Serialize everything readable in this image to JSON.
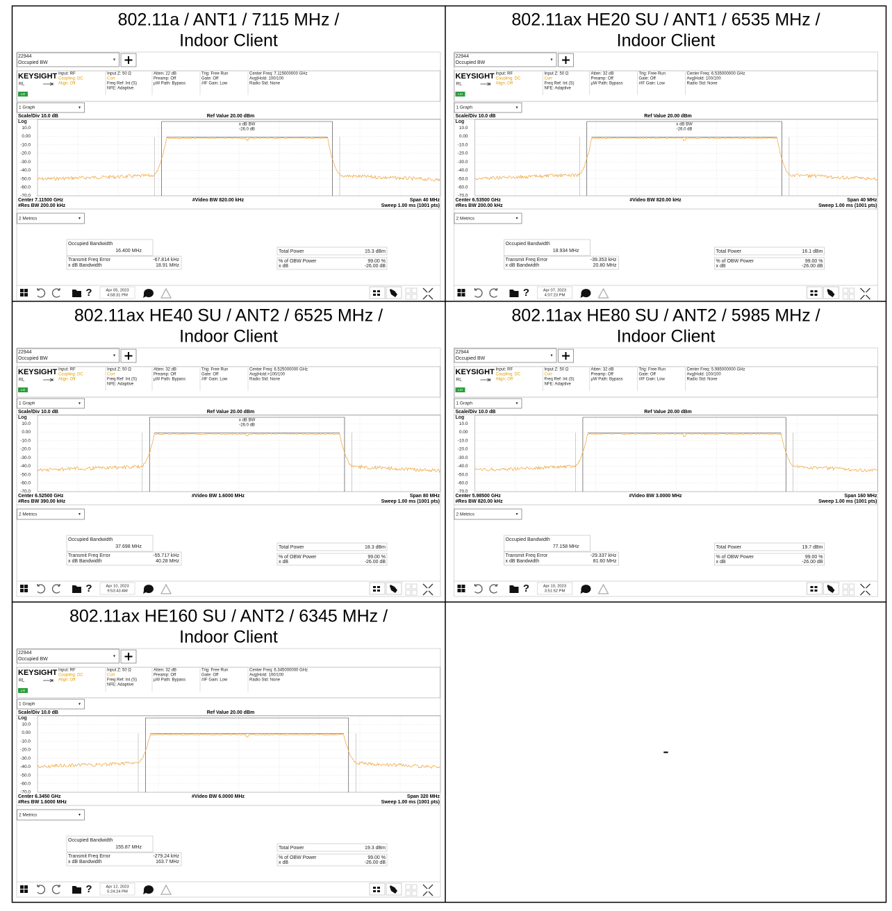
{
  "cells": [
    {
      "title": [
        "802.11a / ANT1 / 7115 MHz /",
        "Indoor Client"
      ],
      "screen": {
        "id": "22944",
        "mode": "Occupied BW",
        "brand": "KEYSIGHT",
        "rl": "RL",
        "lxi": "LXI",
        "header": [
          [
            "Input: RF",
            "Coupling: DC",
            "Align: Off"
          ],
          [
            "Input Z: 50 Ω",
            "Corr",
            "Freq Ref: Int (S)",
            "NFE: Adaptive"
          ],
          [
            "Atten: 22 dB",
            "Preamp: Off",
            "µW Path: Bypass"
          ],
          [
            "Trig: Free Run",
            "Gate: Off",
            "#IF Gain: Low"
          ],
          [
            "Center Freq: 7.115000000 GHz",
            "Avg|Hold: 100/100",
            "Radio Std: None"
          ]
        ],
        "graph": "1 Graph",
        "scale": "Scale/Div 10.0 dB",
        "ref": "Ref Value 20.00 dBm",
        "log": "Log",
        "y_labels": [
          "10.0",
          "0.00",
          "-10.0",
          "-20.0",
          "-30.0",
          "-40.0",
          "-50.0",
          "-60.0",
          "-70.0"
        ],
        "marker": [
          "x dB BW",
          "-26.0 dB"
        ],
        "center": "Center 7.11500 GHz",
        "video_bw": "#Video BW 820.00 kHz",
        "span": "Span 40 MHz",
        "res_bw": "#Res BW 200.00 kHz",
        "sweep": "Sweep 1.00 ms (1001 pts)",
        "metrics_menu": "2 Metrics",
        "metrics": {
          "obw_label": "Occupied Bandwidth",
          "obw": "16.400 MHz",
          "tfe_label": "Transmit Freq Error",
          "tfe": "-67.814 kHz",
          "xdb_bw_label": "x dB Bandwidth",
          "xdb_bw": "18.91 MHz",
          "tp_label": "Total Power",
          "tp": "15.3 dBm",
          "pct_label": "% of OBW Power",
          "pct": "99.00 %",
          "xdb_label": "x dB",
          "xdb": "-26.00 dB"
        },
        "help": "?",
        "date": "Apr 05, 2023",
        "time": "4:58:31 PM"
      }
    },
    {
      "title": [
        "802.11ax HE20 SU / ANT1 / 6535 MHz /",
        "Indoor Client"
      ],
      "screen": {
        "id": "22944",
        "mode": "Occupied BW",
        "brand": "KEYSIGHT",
        "rl": "RL",
        "lxi": "LXI",
        "header": [
          [
            "Input: RF",
            "Coupling: DC",
            "Align: Off"
          ],
          [
            "Input Z: 50 Ω",
            "Corr",
            "Freq Ref: Int (S)",
            "NFE: Adaptive"
          ],
          [
            "Atten: 32 dB",
            "Preamp: Off",
            "µW Path: Bypass"
          ],
          [
            "Trig: Free Run",
            "Gate: Off",
            "#IF Gain: Low"
          ],
          [
            "Center Freq: 6.535000000 GHz",
            "Avg|Hold: 100/100",
            "Radio Std: None"
          ]
        ],
        "graph": "1 Graph",
        "scale": "Scale/Div 10.0 dB",
        "ref": "Ref Value 20.00 dBm",
        "log": "Log",
        "y_labels": [
          "10.0",
          "0.00",
          "-10.0",
          "-20.0",
          "-30.0",
          "-40.0",
          "-50.0",
          "-60.0",
          "-70.0"
        ],
        "marker": [
          "x dB BW",
          "-26.0 dB"
        ],
        "center": "Center 6.53500 GHz",
        "video_bw": "#Video BW 820.00 kHz",
        "span": "Span 40 MHz",
        "res_bw": "#Res BW 200.00 kHz",
        "sweep": "Sweep 1.00 ms (1001 pts)",
        "metrics_menu": "2 Metrics",
        "metrics": {
          "obw_label": "Occupied Bandwidth",
          "obw": "18.934 MHz",
          "tfe_label": "Transmit Freq Error",
          "tfe": "-39.353 kHz",
          "xdb_bw_label": "x dB Bandwidth",
          "xdb_bw": "20.80 MHz",
          "tp_label": "Total Power",
          "tp": "16.1 dBm",
          "pct_label": "% of OBW Power",
          "pct": "99.00 %",
          "xdb_label": "x dB",
          "xdb": "-26.00 dB"
        },
        "help": "?",
        "date": "Apr 07, 2023",
        "time": "4:07:23 PM"
      }
    },
    {
      "title": [
        "802.11ax HE40 SU / ANT2 / 6525 MHz /",
        "Indoor Client"
      ],
      "screen": {
        "id": "22944",
        "mode": "Occupied BW",
        "brand": "KEYSIGHT",
        "rl": "RL",
        "lxi": "LXI",
        "header": [
          [
            "Input: RF",
            "Coupling: DC",
            "Align: Off"
          ],
          [
            "Input Z: 50 Ω",
            "Corr",
            "Freq Ref: Int (S)",
            "NFE: Adaptive"
          ],
          [
            "Atten: 32 dB",
            "Preamp: Off",
            "µW Path: Bypass"
          ],
          [
            "Trig: Free Run",
            "Gate: Off",
            "#IF Gain: Low"
          ],
          [
            "Center Freq: 6.525000000 GHz",
            "Avg|Hold:>100/100",
            "Radio Std: None"
          ]
        ],
        "graph": "1 Graph",
        "scale": "Scale/Div 10.0 dB",
        "ref": "Ref Value 20.00 dBm",
        "log": "Log",
        "y_labels": [
          "10.0",
          "0.00",
          "-10.0",
          "-20.0",
          "-30.0",
          "-40.0",
          "-50.0",
          "-60.0",
          "-70.0"
        ],
        "marker": [
          "x dB BW",
          "-26.0 dB"
        ],
        "center": "Center 6.52500 GHz",
        "video_bw": "#Video BW 1.6000 MHz",
        "span": "Span 80 MHz",
        "res_bw": "#Res BW 390.00 kHz",
        "sweep": "Sweep 1.00 ms (1001 pts)",
        "metrics_menu": "2 Metrics",
        "metrics": {
          "obw_label": "Occupied Bandwidth",
          "obw": "37.698 MHz",
          "tfe_label": "Transmit Freq Error",
          "tfe": "-55.717 kHz",
          "xdb_bw_label": "x dB Bandwidth",
          "xdb_bw": "40.28 MHz",
          "tp_label": "Total Power",
          "tp": "18.3 dBm",
          "pct_label": "% of OBW Power",
          "pct": "99.00 %",
          "xdb_label": "x dB",
          "xdb": "-26.00 dB"
        },
        "help": "?",
        "date": "Apr 10, 2023",
        "time": "9:53:43 AM"
      }
    },
    {
      "title": [
        "802.11ax HE80 SU / ANT2 / 5985 MHz /",
        "Indoor Client"
      ],
      "screen": {
        "id": "22944",
        "mode": "Occupied BW",
        "brand": "KEYSIGHT",
        "rl": "RL",
        "lxi": "LXI",
        "header": [
          [
            "Input: RF",
            "Coupling: DC",
            "Align: Off"
          ],
          [
            "Input Z: 50 Ω",
            "Corr",
            "Freq Ref: Int (S)",
            "NFE: Adaptive"
          ],
          [
            "Atten: 32 dB",
            "Preamp: Off",
            "µW Path: Bypass"
          ],
          [
            "Trig: Free Run",
            "Gate: Off",
            "#IF Gain: Low"
          ],
          [
            "Center Freq: 5.985000000 GHz",
            "Avg|Hold: 100/100",
            "Radio Std: None"
          ]
        ],
        "graph": "1 Graph",
        "scale": "Scale/Div 10.0 dB",
        "ref": "Ref Value 20.00 dBm",
        "log": "Log",
        "y_labels": [
          "10.0",
          "0.00",
          "-10.0",
          "-20.0",
          "-30.0",
          "-40.0",
          "-50.0",
          "-60.0",
          "-70.0"
        ],
        "center": "Center 5.98500 GHz",
        "video_bw": "#Video BW 3.0000 MHz",
        "span": "Span 160 MHz",
        "res_bw": "#Res BW 820.00 kHz",
        "sweep": "Sweep 1.00 ms (1001 pts)",
        "metrics_menu": "2 Metrics",
        "metrics": {
          "obw_label": "Occupied Bandwidth",
          "obw": "77.158 MHz",
          "tfe_label": "Transmit Freq Error",
          "tfe": "-29.337 kHz",
          "xdb_bw_label": "x dB Bandwidth",
          "xdb_bw": "81.60 MHz",
          "tp_label": "Total Power",
          "tp": "19.7 dBm",
          "pct_label": "% of OBW Power",
          "pct": "99.00 %",
          "xdb_label": "x dB",
          "xdb": "-26.00 dB"
        },
        "help": "?",
        "date": "Apr 10, 2023",
        "time": "3:51:52 PM"
      }
    },
    {
      "title": [
        "802.11ax HE160 SU / ANT2 / 6345 MHz /",
        "Indoor Client"
      ],
      "screen": {
        "id": "22944",
        "mode": "Occupied BW",
        "brand": "KEYSIGHT",
        "rl": "RL",
        "lxi": "LXI",
        "header": [
          [
            "Input: RF",
            "Coupling: DC",
            "Align: Off"
          ],
          [
            "Input Z: 50 Ω",
            "Corr",
            "Freq Ref: Int (S)",
            "NFE: Adaptive"
          ],
          [
            "Atten: 32 dB",
            "Preamp: Off",
            "µW Path: Bypass"
          ],
          [
            "Trig: Free Run",
            "Gate: Off",
            "#IF Gain: Low"
          ],
          [
            "Center Freq: 6.345000000 GHz",
            "Avg|Hold: 100/100",
            "Radio Std: None"
          ]
        ],
        "graph": "1 Graph",
        "scale": "Scale/Div 10.0 dB",
        "ref": "Ref Value 20.00 dBm",
        "log": "Log",
        "y_labels": [
          "10.0",
          "0.00",
          "-10.0",
          "-20.0",
          "-30.0",
          "-40.0",
          "-50.0",
          "-60.0",
          "-70.0"
        ],
        "center": "Center 6.3450 GHz",
        "video_bw": "#Video BW 6.0000 MHz",
        "span": "Span 320 MHz",
        "res_bw": "#Res BW 1.6000 MHz",
        "sweep": "Sweep 1.00 ms (1001 pts)",
        "metrics_menu": "2 Metrics",
        "metrics": {
          "obw_label": "Occupied Bandwidth",
          "obw": "155.87 MHz",
          "tfe_label": "Transmit Freq Error",
          "tfe": "-279.24 kHz",
          "xdb_bw_label": "x dB Bandwidth",
          "xdb_bw": "163.7 MHz",
          "tp_label": "Total Power",
          "tp": "19.3 dBm",
          "pct_label": "% of OBW Power",
          "pct": "99.00 %",
          "xdb_label": "x dB",
          "xdb": "-26.00 dB"
        },
        "help": "?",
        "date": "Apr 12, 2023",
        "time": "5:24:24 PM"
      }
    },
    {
      "text": "-"
    }
  ]
}
